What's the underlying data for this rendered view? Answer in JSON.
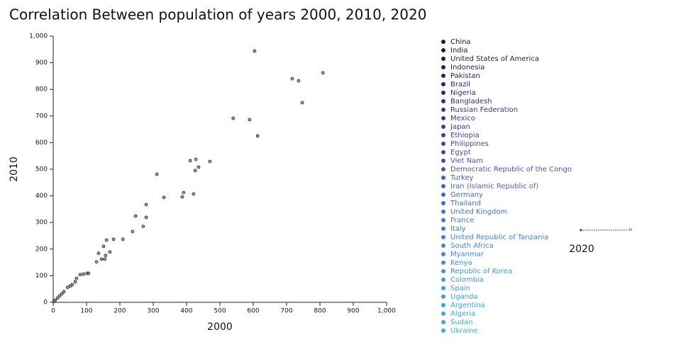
{
  "chart_data": {
    "type": "scatter",
    "title": "Correlation Between population of years 2000, 2010, 2020",
    "x_label": "2000",
    "y_label": "2010",
    "xlim": [
      0,
      1000
    ],
    "ylim": [
      0,
      1000
    ],
    "xticks": [
      0,
      100,
      200,
      300,
      400,
      500,
      600,
      700,
      800,
      900,
      {
        "value": 1000,
        "label": "1,000"
      }
    ],
    "yticks": [
      0,
      100,
      200,
      300,
      400,
      500,
      600,
      700,
      800,
      900,
      {
        "value": 1000,
        "label": "1,000"
      }
    ],
    "point_color": "#8a8a8a",
    "point_edge": "#2a1f2a",
    "x": [
      604,
      717,
      736,
      809,
      747,
      540,
      589,
      613,
      411,
      428,
      426,
      436,
      470,
      311,
      332,
      391,
      387,
      421,
      279,
      247,
      279,
      238,
      270,
      209,
      181,
      160,
      151,
      136,
      145,
      155,
      157,
      170,
      130,
      81,
      91,
      102,
      106,
      70,
      66,
      57,
      51,
      43,
      32,
      26,
      19,
      13,
      6,
      2
    ],
    "y": [
      944,
      840,
      832,
      862,
      750,
      691,
      686,
      625,
      532,
      537,
      495,
      508,
      529,
      481,
      394,
      412,
      396,
      407,
      367,
      324,
      319,
      266,
      285,
      237,
      237,
      234,
      210,
      184,
      162,
      162,
      176,
      189,
      152,
      104,
      106,
      109,
      109,
      90,
      77,
      66,
      61,
      56,
      40,
      32,
      24,
      16,
      8,
      3
    ],
    "legend": [
      {
        "name": "China",
        "color": "#1a1a1a"
      },
      {
        "name": "India",
        "color": "#1f1a2c"
      },
      {
        "name": "United States of America",
        "color": "#241b3c"
      },
      {
        "name": "Indonesia",
        "color": "#29204a"
      },
      {
        "name": "Pakistan",
        "color": "#2d2256"
      },
      {
        "name": "Brazil",
        "color": "#312561"
      },
      {
        "name": "Nigeria",
        "color": "#35286e"
      },
      {
        "name": "Bangladesh",
        "color": "#392b7a"
      },
      {
        "name": "Russian Federation",
        "color": "#3d2f86"
      },
      {
        "name": "Mexico",
        "color": "#403392"
      },
      {
        "name": "Japan",
        "color": "#43379c"
      },
      {
        "name": "Ethiopia",
        "color": "#463ba6"
      },
      {
        "name": "Philippines",
        "color": "#4840ae"
      },
      {
        "name": "Egypt",
        "color": "#4945b5"
      },
      {
        "name": "Viet Nam",
        "color": "#4a4bbb"
      },
      {
        "name": "Democratic Republic of the Congo",
        "color": "#4a51c0"
      },
      {
        "name": "Turkey",
        "color": "#4a57c5"
      },
      {
        "name": "Iran (Islamic Republic of)",
        "color": "#495dc9"
      },
      {
        "name": "Germany",
        "color": "#4863cd"
      },
      {
        "name": "Thailand",
        "color": "#4769d0"
      },
      {
        "name": "United Kingdom",
        "color": "#466fd3"
      },
      {
        "name": "France",
        "color": "#4574d6"
      },
      {
        "name": "Italy",
        "color": "#447ad8"
      },
      {
        "name": "United Republic of Tanzania",
        "color": "#437fdb"
      },
      {
        "name": "South Africa",
        "color": "#4284dd"
      },
      {
        "name": "Myanmar",
        "color": "#4189df"
      },
      {
        "name": "Kenya",
        "color": "#408ee1"
      },
      {
        "name": "Republic of Korea",
        "color": "#3f92e3"
      },
      {
        "name": "Colombia",
        "color": "#3e96e5"
      },
      {
        "name": "Spain",
        "color": "#3d9ae6"
      },
      {
        "name": "Uganda",
        "color": "#3c9ee8"
      },
      {
        "name": "Argentina",
        "color": "#3ba2e9"
      },
      {
        "name": "Algeria",
        "color": "#3aa6ea"
      },
      {
        "name": "Sudan",
        "color": "#39a9eb"
      },
      {
        "name": "Ukraine",
        "color": "#38adec"
      }
    ],
    "size_legend": {
      "title": "2020",
      "label": "20"
    }
  }
}
